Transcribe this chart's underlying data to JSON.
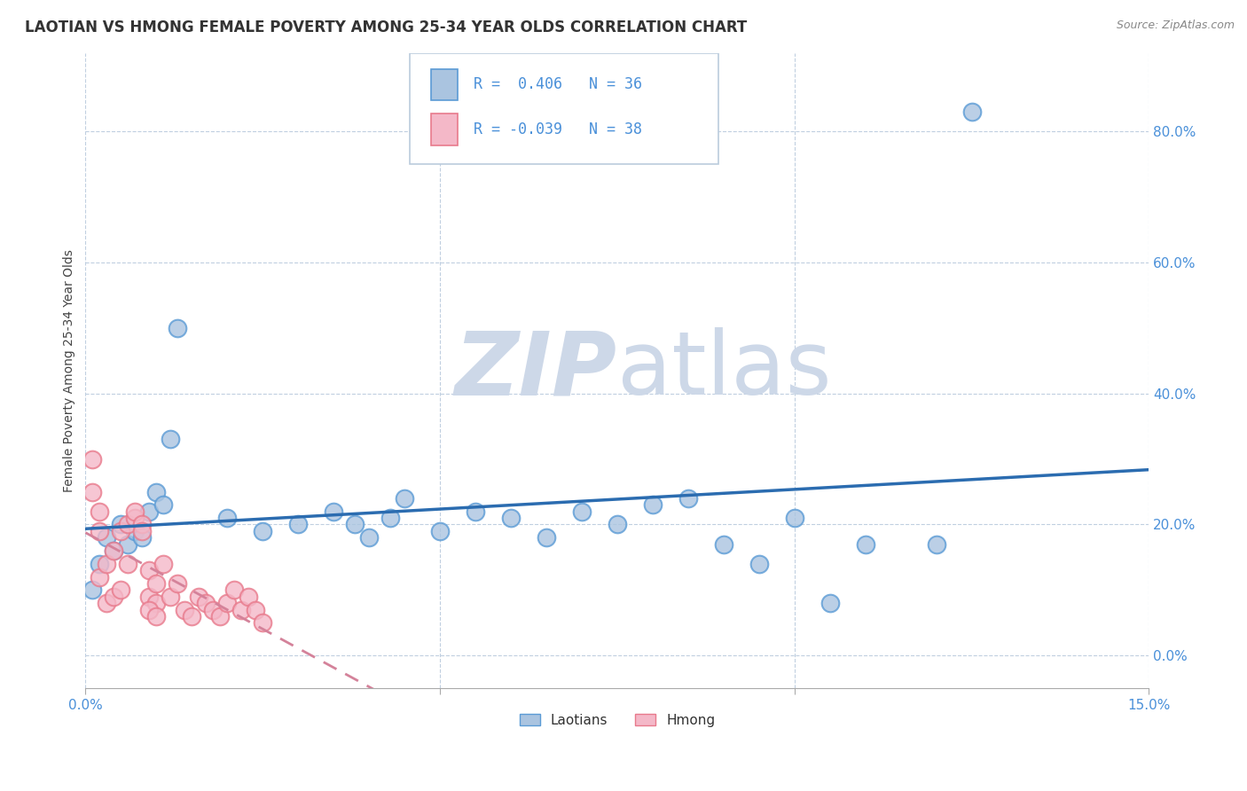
{
  "title": "LAOTIAN VS HMONG FEMALE POVERTY AMONG 25-34 YEAR OLDS CORRELATION CHART",
  "source": "Source: ZipAtlas.com",
  "ylabel": "Female Poverty Among 25-34 Year Olds",
  "xlim": [
    0.0,
    0.15
  ],
  "ylim": [
    -0.05,
    0.92
  ],
  "xticks": [
    0.0,
    0.05,
    0.1,
    0.15
  ],
  "xticklabels": [
    "0.0%",
    "",
    "",
    "15.0%"
  ],
  "yticks": [
    0.0,
    0.2,
    0.4,
    0.6,
    0.8
  ],
  "yticklabels": [
    "0.0%",
    "20.0%",
    "40.0%",
    "60.0%",
    "80.0%"
  ],
  "laotian_color": "#aac4e0",
  "hmong_color": "#f4b8c8",
  "laotian_edge_color": "#5b9bd5",
  "hmong_edge_color": "#e87a8c",
  "laotian_line_color": "#2b6cb0",
  "hmong_line_color": "#d4829a",
  "background_color": "#ffffff",
  "grid_color": "#c0cfe0",
  "tick_color": "#4a90d9",
  "R_laotian": 0.406,
  "N_laotian": 36,
  "R_hmong": -0.039,
  "N_hmong": 38,
  "laotian_x": [
    0.001,
    0.002,
    0.003,
    0.004,
    0.005,
    0.006,
    0.007,
    0.008,
    0.009,
    0.01,
    0.011,
    0.012,
    0.013,
    0.02,
    0.025,
    0.03,
    0.035,
    0.038,
    0.04,
    0.043,
    0.045,
    0.05,
    0.055,
    0.06,
    0.065,
    0.07,
    0.075,
    0.08,
    0.085,
    0.09,
    0.095,
    0.1,
    0.105,
    0.11,
    0.12,
    0.125
  ],
  "laotian_y": [
    0.1,
    0.14,
    0.18,
    0.16,
    0.2,
    0.17,
    0.19,
    0.18,
    0.22,
    0.25,
    0.23,
    0.33,
    0.5,
    0.21,
    0.19,
    0.2,
    0.22,
    0.2,
    0.18,
    0.21,
    0.24,
    0.19,
    0.22,
    0.21,
    0.18,
    0.22,
    0.2,
    0.23,
    0.24,
    0.17,
    0.14,
    0.21,
    0.08,
    0.17,
    0.17,
    0.83
  ],
  "hmong_x": [
    0.001,
    0.001,
    0.002,
    0.002,
    0.002,
    0.003,
    0.003,
    0.004,
    0.004,
    0.005,
    0.005,
    0.006,
    0.006,
    0.007,
    0.007,
    0.008,
    0.009,
    0.009,
    0.01,
    0.01,
    0.011,
    0.012,
    0.013,
    0.014,
    0.015,
    0.016,
    0.017,
    0.018,
    0.019,
    0.02,
    0.021,
    0.022,
    0.023,
    0.024,
    0.025,
    0.008,
    0.009,
    0.01
  ],
  "hmong_y": [
    0.25,
    0.3,
    0.12,
    0.19,
    0.22,
    0.08,
    0.14,
    0.09,
    0.16,
    0.1,
    0.19,
    0.14,
    0.2,
    0.21,
    0.22,
    0.2,
    0.13,
    0.09,
    0.11,
    0.08,
    0.14,
    0.09,
    0.11,
    0.07,
    0.06,
    0.09,
    0.08,
    0.07,
    0.06,
    0.08,
    0.1,
    0.07,
    0.09,
    0.07,
    0.05,
    0.19,
    0.07,
    0.06
  ],
  "watermark_zip": "ZIP",
  "watermark_atlas": "atlas",
  "watermark_color": "#cdd8e8",
  "title_fontsize": 12,
  "axis_label_fontsize": 10,
  "tick_fontsize": 11,
  "legend_fontsize": 12,
  "source_fontsize": 9
}
